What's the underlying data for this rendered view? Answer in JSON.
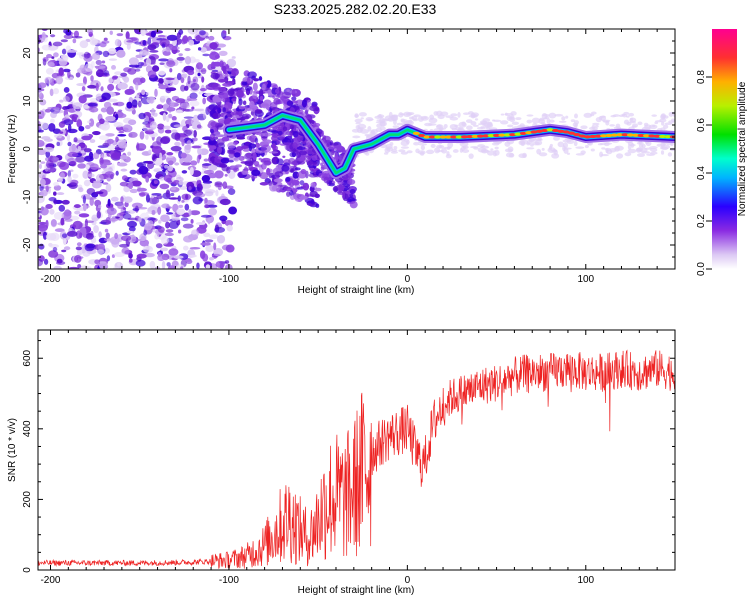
{
  "title": "S233.2025.282.02.20.E33",
  "chart_data": [
    {
      "type": "heatmap",
      "title": "S233.2025.282.02.20.E33",
      "xlabel": "Height of straight line (km)",
      "ylabel": "Frequency (Hz)",
      "xlim": [
        -207,
        150
      ],
      "ylim": [
        -25,
        25
      ],
      "xticks": [
        -200,
        -100,
        0,
        100
      ],
      "yticks": [
        -20,
        -10,
        0,
        10,
        20
      ],
      "colorbar": {
        "label": "Normalized spectral amplitude",
        "range": [
          0,
          1
        ],
        "ticks": [
          "0.0",
          "0.2",
          "0.4",
          "0.6",
          "0.8"
        ]
      },
      "ridge": {
        "x": [
          -100,
          -80,
          -70,
          -60,
          -50,
          -40,
          -35,
          -30,
          -20,
          -10,
          -5,
          0,
          10,
          30,
          60,
          80,
          90,
          100,
          120,
          150
        ],
        "y": [
          4,
          5,
          7,
          6,
          1,
          -5,
          -4,
          0,
          1,
          3,
          3,
          4,
          2.5,
          2.5,
          3,
          4,
          3.5,
          2.5,
          3,
          2.5
        ]
      }
    },
    {
      "type": "line",
      "title": "",
      "xlabel": "Height of straight line (km)",
      "ylabel": "SNR (10 * v/v)",
      "xlim": [
        -207,
        150
      ],
      "ylim": [
        0,
        680
      ],
      "xticks": [
        -200,
        -100,
        0,
        100
      ],
      "yticks": [
        0,
        200,
        400,
        600
      ],
      "series": [
        {
          "name": "SNR",
          "color": "#ee2222",
          "x": [
            -207,
            -180,
            -150,
            -120,
            -100,
            -90,
            -80,
            -72,
            -66,
            -60,
            -55,
            -50,
            -45,
            -40,
            -35,
            -30,
            -25,
            -20,
            -15,
            -10,
            -5,
            0,
            5,
            8,
            10,
            12,
            15,
            20,
            25,
            30,
            40,
            50,
            60,
            70,
            80,
            90,
            100,
            110,
            120,
            130,
            140,
            150
          ],
          "values": [
            20,
            20,
            20,
            22,
            28,
            40,
            70,
            120,
            150,
            110,
            90,
            140,
            200,
            210,
            200,
            230,
            280,
            330,
            360,
            380,
            390,
            400,
            330,
            300,
            310,
            360,
            420,
            470,
            490,
            500,
            520,
            530,
            550,
            560,
            560,
            570,
            560,
            560,
            570,
            560,
            570,
            560
          ]
        }
      ]
    }
  ]
}
